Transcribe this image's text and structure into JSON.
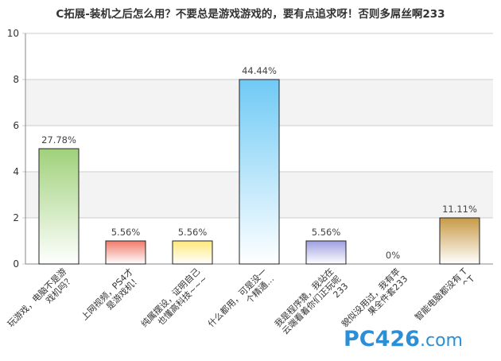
{
  "chart_data": {
    "type": "bar",
    "title": "C拓展-装机之后怎么用？不要总是游戏游戏的，要有点追求呀！否则多屌丝啊233",
    "xlabel": "",
    "ylabel": "",
    "ylim": [
      0,
      10
    ],
    "yticks": [
      "0",
      "2",
      "4",
      "6",
      "8",
      "10"
    ],
    "grid": true,
    "legend": "none",
    "categories": [
      "玩游戏，电脑不是游戏机吗？",
      "上网视频，PS4才是游戏机！",
      "纯属摆设，证明自己也懂高科技~~~",
      "什么都用，可是没一个精通…",
      "我是程序猿，我站在云端看着你们正玩呢233",
      "貌似没用过，我有苹果全件套233",
      "智能电脑都没有 T^T"
    ],
    "values": [
      5,
      1,
      1,
      8,
      1,
      0,
      2
    ],
    "data_labels": [
      "27.78%",
      "5.56%",
      "5.56%",
      "44.44%",
      "5.56%",
      "0%",
      "11.11%"
    ],
    "colors": [
      [
        "#ffffff",
        "#9fd17a"
      ],
      [
        "#ffffff",
        "#f07a6a"
      ],
      [
        "#ffffff",
        "#ffe97a"
      ],
      [
        "#ffffff",
        "#6fcaf5"
      ],
      [
        "#ffffff",
        "#9e9ee0"
      ],
      [
        "#ffffff",
        "#bbbbbb"
      ],
      [
        "#ffffff",
        "#c89a45"
      ]
    ]
  },
  "watermark": {
    "brand": "PC426",
    "domain": ".com"
  }
}
